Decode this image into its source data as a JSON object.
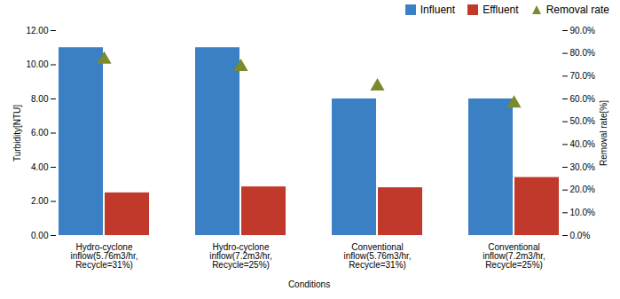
{
  "chart_data": {
    "type": "bar",
    "categories": [
      "Hydro-cyclone\ninflow(5.76m3/hr,\nRecycle=31%)",
      "Hydro-cyclone\ninflow(7.2m3/hr,\nRecycle=25%)",
      "Conventional\ninflow(5.76m3/hr,\nRecycle=31%)",
      "Conventional\ninflow(7.2m3/hr,\nRecycle=25%)"
    ],
    "series": [
      {
        "name": "Influent",
        "color": "#3B7FC4",
        "values": [
          11.0,
          11.0,
          8.0,
          8.0
        ]
      },
      {
        "name": "Effluent",
        "color": "#C0392B",
        "values": [
          2.5,
          2.85,
          2.8,
          3.4
        ]
      },
      {
        "name": "Removal rate",
        "color": "#7B8B2B",
        "type": "scatter",
        "marker": "triangle",
        "axis": "y2",
        "values": [
          0.773,
          0.741,
          0.655,
          0.58
        ]
      }
    ],
    "xlabel": "Conditions",
    "ylabel": "Turbidity[NTU]",
    "y2label": "Removal rate[%]",
    "ylim": [
      0,
      12.0
    ],
    "yticks": [
      {
        "value": 0.0,
        "label": "0.00"
      },
      {
        "value": 2.0,
        "label": "2.00"
      },
      {
        "value": 4.0,
        "label": "4.00"
      },
      {
        "value": 6.0,
        "label": "6.00"
      },
      {
        "value": 8.0,
        "label": "8.00"
      },
      {
        "value": 10.0,
        "label": "10.00"
      },
      {
        "value": 12.0,
        "label": "12.00"
      }
    ],
    "y2lim": [
      0.0,
      0.9
    ],
    "y2ticks": [
      {
        "value": 0.0,
        "label": "0.0%"
      },
      {
        "value": 0.1,
        "label": "10.0%"
      },
      {
        "value": 0.2,
        "label": "20.0%"
      },
      {
        "value": 0.3,
        "label": "30.0%"
      },
      {
        "value": 0.4,
        "label": "40.0%"
      },
      {
        "value": 0.5,
        "label": "50.0%"
      },
      {
        "value": 0.6,
        "label": "60.0%"
      },
      {
        "value": 0.7,
        "label": "70.0%"
      },
      {
        "value": 0.8,
        "label": "80.0%"
      },
      {
        "value": 0.9,
        "label": "90.0%"
      }
    ],
    "grid": false,
    "legend": "upper right"
  }
}
